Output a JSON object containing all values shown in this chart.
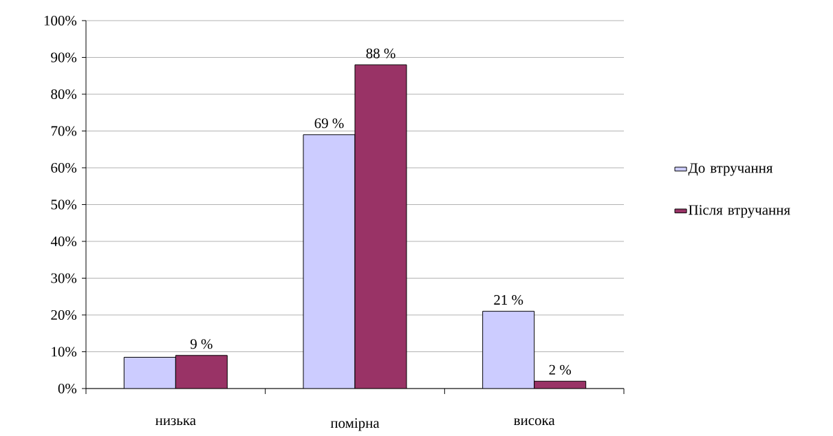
{
  "chart_data": {
    "type": "bar",
    "categories": [
      "низька",
      "помірна",
      "висока"
    ],
    "series": [
      {
        "name": "До втручання",
        "color": "#ccccff",
        "values": [
          8.5,
          69,
          21
        ],
        "value_labels": [
          null,
          "69 %",
          "21 %"
        ]
      },
      {
        "name": "Після втручання",
        "color": "#993366",
        "values": [
          9,
          88,
          2
        ],
        "value_labels": [
          "9 %",
          "88 %",
          "2 %"
        ]
      }
    ],
    "ylim": [
      0,
      100
    ],
    "yticks": [
      {
        "value": 0,
        "label": "0%"
      },
      {
        "value": 10,
        "label": "10%"
      },
      {
        "value": 20,
        "label": "20%"
      },
      {
        "value": 30,
        "label": "30%"
      },
      {
        "value": 40,
        "label": "40%"
      },
      {
        "value": 50,
        "label": "50%"
      },
      {
        "value": 60,
        "label": "60%"
      },
      {
        "value": 70,
        "label": "70%"
      },
      {
        "value": 80,
        "label": "80%"
      },
      {
        "value": 90,
        "label": "90%"
      },
      {
        "value": 100,
        "label": "100%"
      }
    ],
    "grid": "y",
    "legend": "right"
  }
}
